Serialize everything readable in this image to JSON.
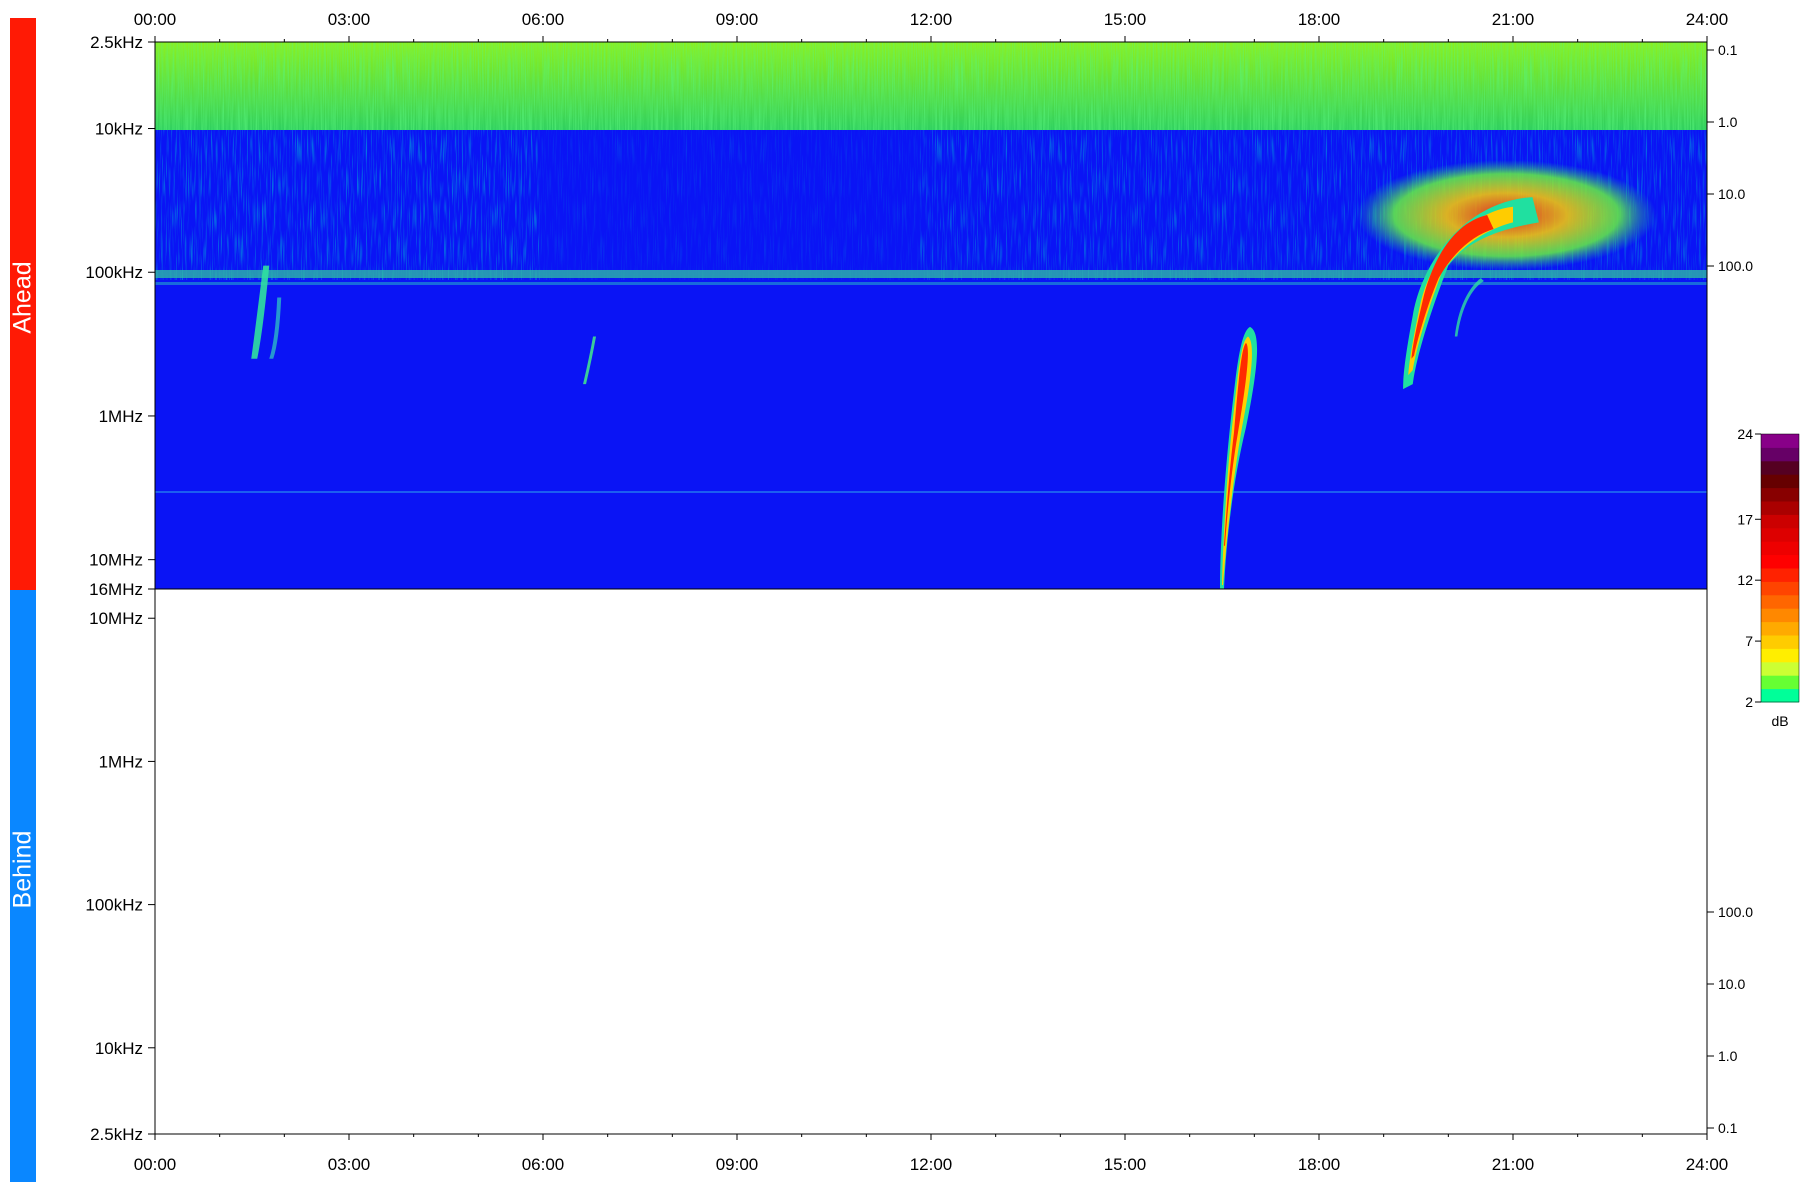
{
  "panels": {
    "ahead": {
      "label": "Ahead",
      "color": "#ff1a05"
    },
    "behind": {
      "label": "Behind",
      "color": "#0a87ff"
    }
  },
  "chart_data": {
    "type": "heatmap",
    "title": "",
    "x_ticks": [
      "00:00",
      "03:00",
      "06:00",
      "09:00",
      "12:00",
      "15:00",
      "18:00",
      "21:00",
      "24:00"
    ],
    "x_range_hours": [
      0,
      24
    ],
    "ahead": {
      "freq_ticks": [
        "2.5kHz",
        "10kHz",
        "100kHz",
        "1MHz",
        "10MHz",
        "16MHz"
      ],
      "right_ticks": [
        "0.1",
        "1.0",
        "10.0",
        "100.0"
      ],
      "background_color": "#0a14f5",
      "bursts": [
        {
          "start_hour": 1.55,
          "end_hour": 1.75,
          "peak_db": 6
        },
        {
          "start_hour": 6.65,
          "end_hour": 6.7,
          "peak_db": 4
        },
        {
          "start_hour": 16.5,
          "end_hour": 16.9,
          "peak_db": 14
        },
        {
          "start_hour": 19.3,
          "end_hour": 21.5,
          "peak_db": 13
        }
      ]
    },
    "behind": {
      "freq_ticks": [
        "10MHz",
        "1MHz",
        "100kHz",
        "10kHz",
        "2.5kHz"
      ],
      "right_ticks": [
        "100.0",
        "10.0",
        "1.0",
        "0.1"
      ]
    },
    "colorbar": {
      "ticks": [
        "24",
        "17",
        "12",
        "7",
        "2"
      ],
      "unit": "dB",
      "colors": [
        "#00ff99",
        "#66ff33",
        "#ccff33",
        "#ffee00",
        "#ffcc00",
        "#ffaa00",
        "#ff8800",
        "#ff6600",
        "#ff4400",
        "#ff2200",
        "#ff0000",
        "#ee0000",
        "#dd0000",
        "#cc0000",
        "#aa0000",
        "#880000",
        "#660000",
        "#550022",
        "#660066",
        "#880088"
      ]
    }
  }
}
